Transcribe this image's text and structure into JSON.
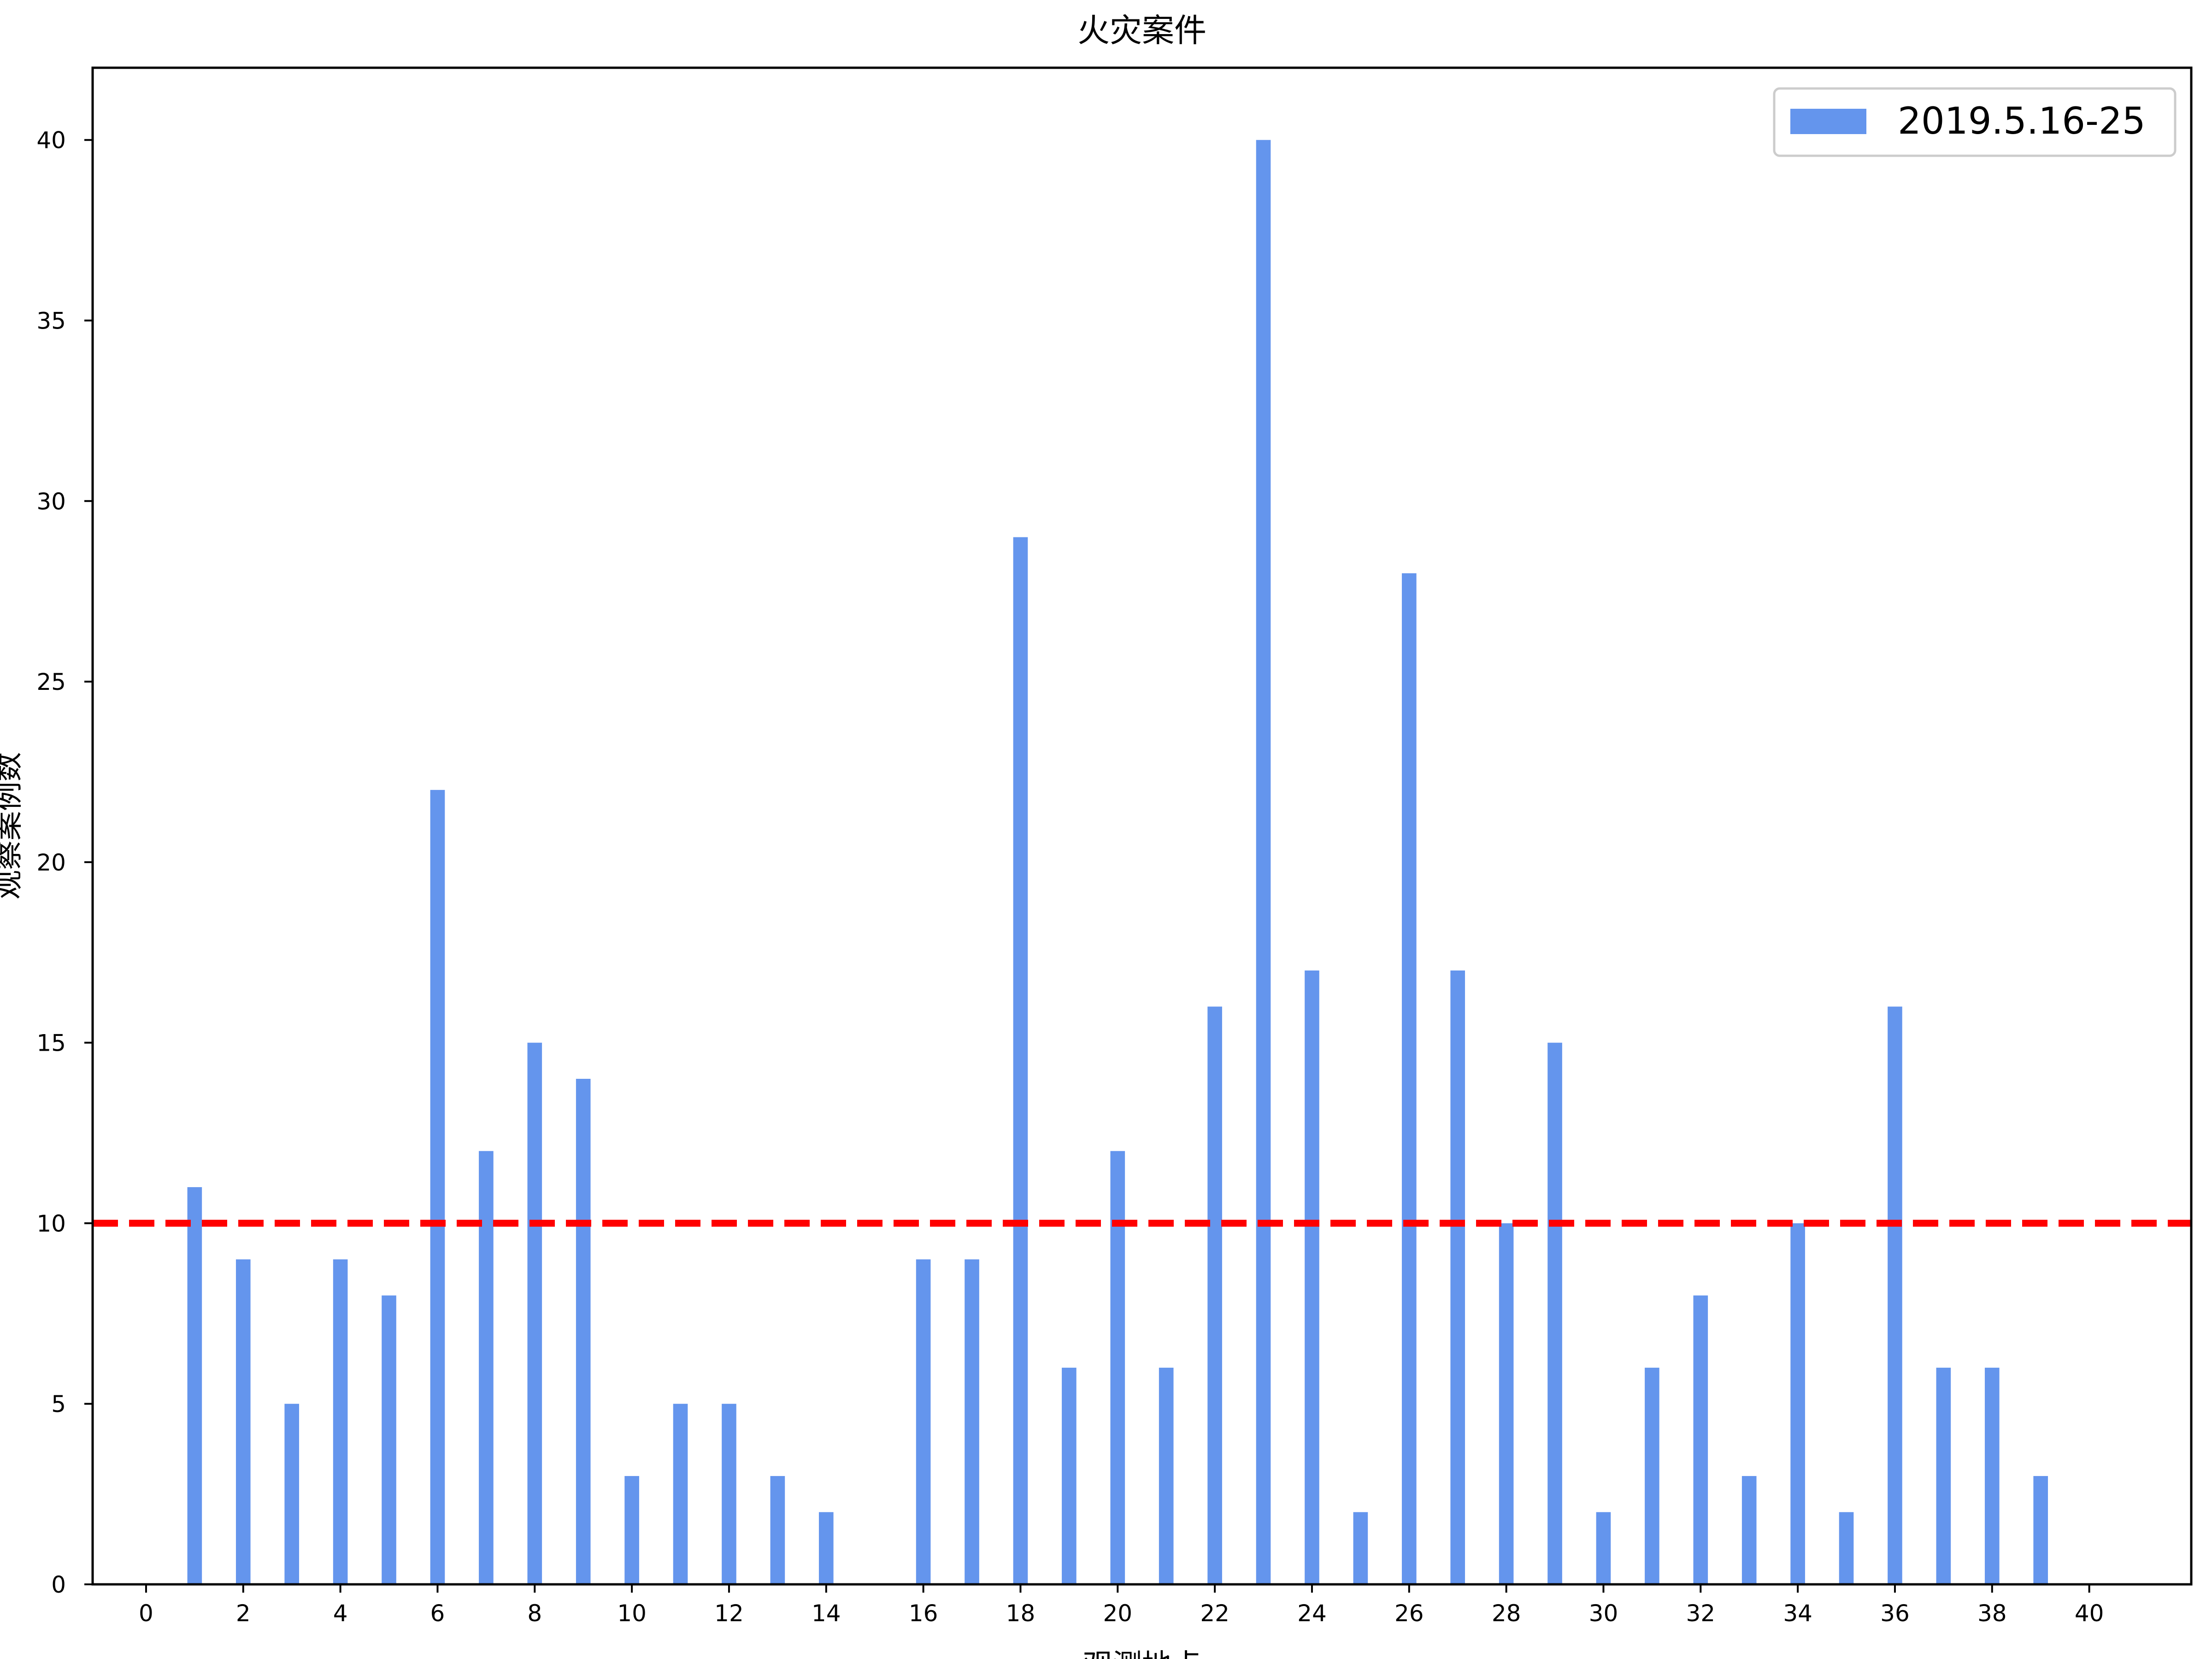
{
  "chart_data": {
    "type": "bar",
    "title": "火灾案件",
    "xlabel": "观测地点",
    "ylabel": "观察案例数",
    "legend": {
      "label": "2019.5.16-25",
      "position": "top-right"
    },
    "series": [
      {
        "name": "2019.5.16-25",
        "color": "#6495ED",
        "x": [
          1,
          2,
          3,
          4,
          5,
          6,
          7,
          8,
          9,
          10,
          11,
          12,
          13,
          14,
          16,
          17,
          18,
          19,
          20,
          21,
          22,
          23,
          24,
          25,
          26,
          27,
          28,
          29,
          30,
          31,
          32,
          33,
          34,
          35,
          36,
          37,
          38,
          39
        ],
        "values": [
          11,
          9,
          5,
          9,
          8,
          22,
          12,
          15,
          14,
          3,
          5,
          5,
          3,
          2,
          9,
          9,
          29,
          6,
          12,
          6,
          16,
          40,
          17,
          2,
          28,
          17,
          10,
          15,
          2,
          6,
          8,
          3,
          10,
          2,
          16,
          6,
          6,
          3
        ]
      }
    ],
    "reference_line": {
      "y": 10,
      "color": "#FF0000",
      "style": "dashed"
    },
    "xlim": [
      -1.1,
      42.1
    ],
    "ylim": [
      0,
      42
    ],
    "xticks": [
      0,
      2,
      4,
      6,
      8,
      10,
      12,
      14,
      16,
      18,
      20,
      22,
      24,
      26,
      28,
      30,
      32,
      34,
      36,
      38,
      40
    ],
    "yticks": [
      0,
      5,
      10,
      15,
      20,
      25,
      30,
      35,
      40
    ],
    "grid": false
  }
}
